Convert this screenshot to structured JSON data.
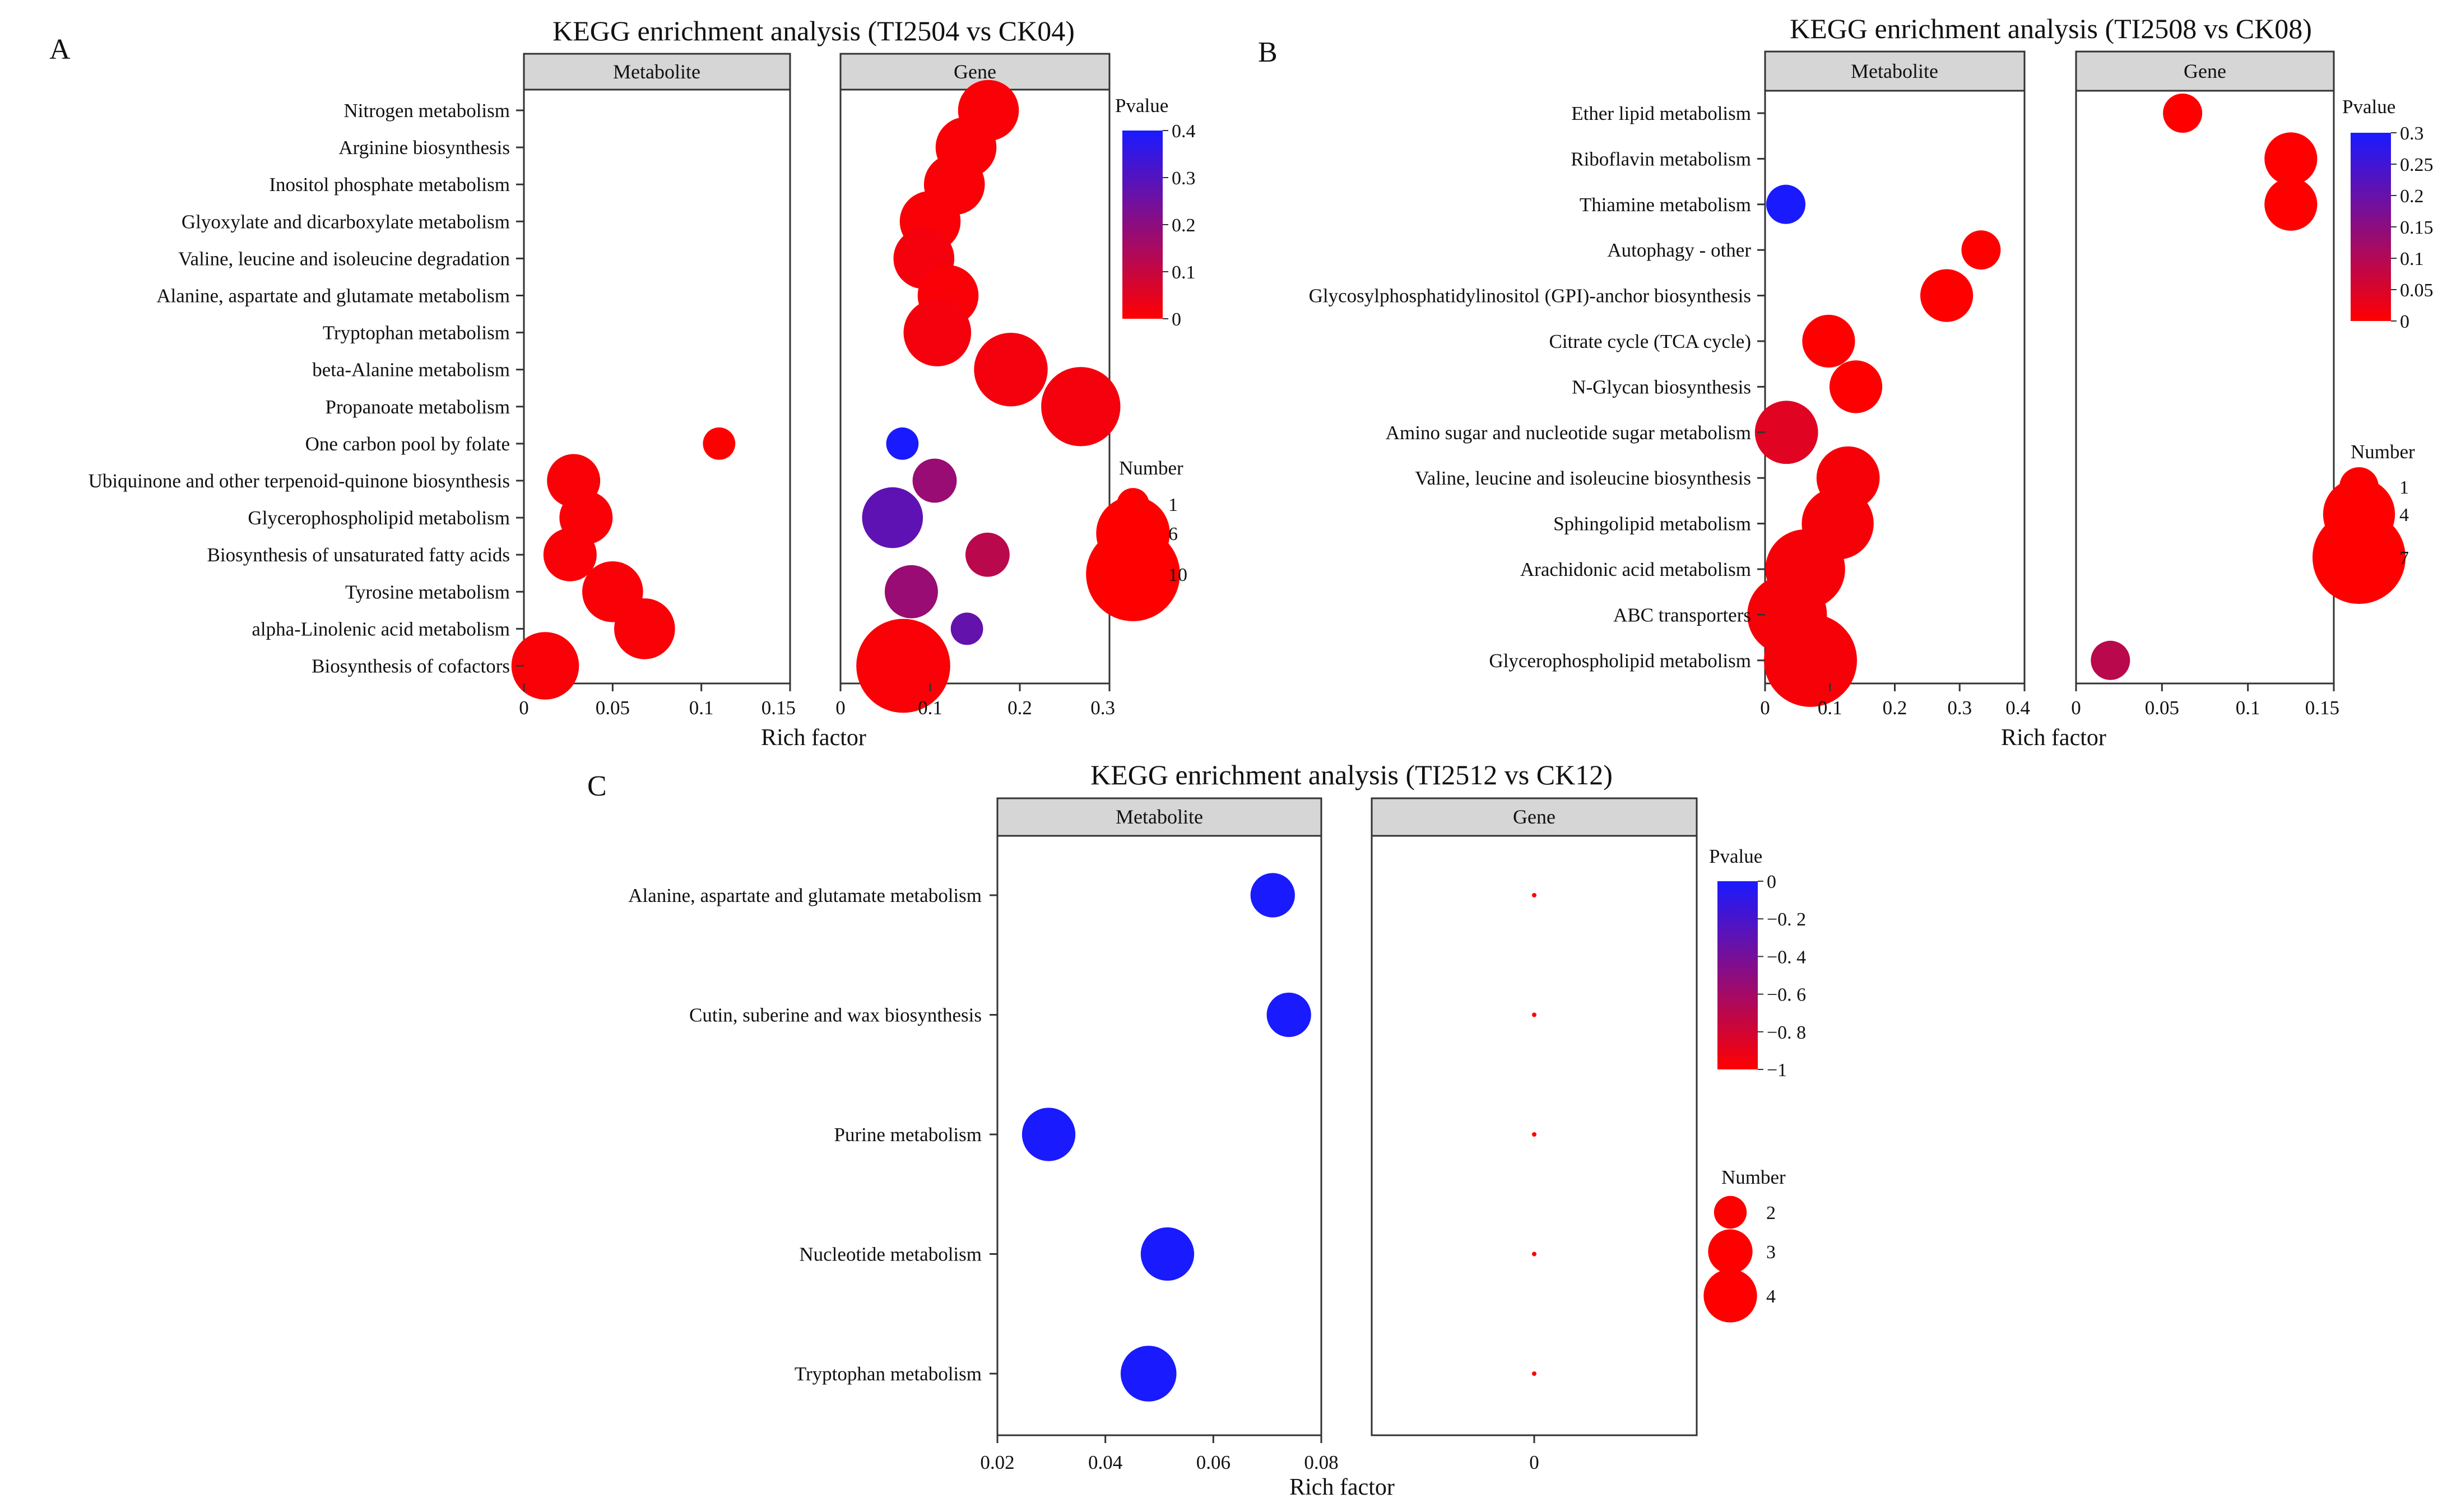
{
  "chart_data": [
    {
      "panel": "A",
      "type": "scatter",
      "title": "KEGG enrichment analysis (TI2504 vs CK04)",
      "xlabel": "Rich factor",
      "facets": [
        {
          "name": "Metabolite",
          "xlim": [
            0,
            0.15
          ],
          "ticks": [
            0,
            0.05,
            0.1,
            0.15
          ],
          "tick_labels": [
            "0",
            "0.05",
            "0.1",
            "0.15"
          ]
        },
        {
          "name": "Gene",
          "xlim": [
            0,
            0.3
          ],
          "ticks": [
            0,
            0.1,
            0.2,
            0.3
          ],
          "tick_labels": [
            "0",
            "0.1",
            "0.2",
            "0.3"
          ]
        }
      ],
      "categories": [
        "Nitrogen metabolism",
        "Arginine biosynthesis",
        "Inositol phosphate metabolism",
        "Glyoxylate and dicarboxylate metabolism",
        "Valine, leucine and isoleucine degradation",
        "Alanine, aspartate and glutamate metabolism",
        "Tryptophan metabolism",
        "beta-Alanine metabolism",
        "Propanoate metabolism",
        "One carbon pool by folate",
        "Ubiquinone and other terpenoid-quinone biosynthesis",
        "Glycerophospholipid metabolism",
        "Biosynthesis of unsaturated fatty acids",
        "Tyrosine metabolism",
        "alpha-Linolenic acid metabolism",
        "Biosynthesis of cofactors"
      ],
      "points": [
        {
          "facet": "Metabolite",
          "category": "One carbon pool by folate",
          "x": 0.11,
          "number": 1,
          "pvalue": 0.0
        },
        {
          "facet": "Metabolite",
          "category": "Ubiquinone and other terpenoid-quinone biosynthesis",
          "x": 0.028,
          "number": 3,
          "pvalue": 0.01
        },
        {
          "facet": "Metabolite",
          "category": "Glycerophospholipid metabolism",
          "x": 0.035,
          "number": 3,
          "pvalue": 0.01
        },
        {
          "facet": "Metabolite",
          "category": "Biosynthesis of unsaturated fatty acids",
          "x": 0.026,
          "number": 3,
          "pvalue": 0.01
        },
        {
          "facet": "Metabolite",
          "category": "Tyrosine metabolism",
          "x": 0.05,
          "number": 4,
          "pvalue": 0.01
        },
        {
          "facet": "Metabolite",
          "category": "alpha-Linolenic acid metabolism",
          "x": 0.068,
          "number": 4,
          "pvalue": 0.01
        },
        {
          "facet": "Metabolite",
          "category": "Biosynthesis of cofactors",
          "x": 0.012,
          "number": 5,
          "pvalue": 0.01
        },
        {
          "facet": "Gene",
          "category": "Nitrogen metabolism",
          "x": 0.165,
          "number": 4,
          "pvalue": 0.01
        },
        {
          "facet": "Gene",
          "category": "Arginine biosynthesis",
          "x": 0.14,
          "number": 4,
          "pvalue": 0.01
        },
        {
          "facet": "Gene",
          "category": "Inositol phosphate metabolism",
          "x": 0.127,
          "number": 4,
          "pvalue": 0.01
        },
        {
          "facet": "Gene",
          "category": "Glyoxylate and dicarboxylate metabolism",
          "x": 0.1,
          "number": 4,
          "pvalue": 0.01
        },
        {
          "facet": "Gene",
          "category": "Valine, leucine and isoleucine degradation",
          "x": 0.093,
          "number": 4,
          "pvalue": 0.02
        },
        {
          "facet": "Gene",
          "category": "Alanine, aspartate and glutamate metabolism",
          "x": 0.12,
          "number": 4,
          "pvalue": 0.01
        },
        {
          "facet": "Gene",
          "category": "Tryptophan metabolism",
          "x": 0.108,
          "number": 5,
          "pvalue": 0.02
        },
        {
          "facet": "Gene",
          "category": "beta-Alanine metabolism",
          "x": 0.19,
          "number": 6,
          "pvalue": 0.02
        },
        {
          "facet": "Gene",
          "category": "Propanoate metabolism",
          "x": 0.268,
          "number": 7,
          "pvalue": 0.02
        },
        {
          "facet": "Gene",
          "category": "One carbon pool by folate",
          "x": 0.069,
          "number": 1,
          "pvalue": 0.4
        },
        {
          "facet": "Gene",
          "category": "Ubiquinone and other terpenoid-quinone biosynthesis",
          "x": 0.105,
          "number": 2,
          "pvalue": 0.18
        },
        {
          "facet": "Gene",
          "category": "Glycerophospholipid metabolism",
          "x": 0.058,
          "number": 4,
          "pvalue": 0.28
        },
        {
          "facet": "Gene",
          "category": "Biosynthesis of unsaturated fatty acids",
          "x": 0.164,
          "number": 2,
          "pvalue": 0.12
        },
        {
          "facet": "Gene",
          "category": "Tyrosine metabolism",
          "x": 0.079,
          "number": 3,
          "pvalue": 0.18
        },
        {
          "facet": "Gene",
          "category": "alpha-Linolenic acid metabolism",
          "x": 0.141,
          "number": 1,
          "pvalue": 0.27
        },
        {
          "facet": "Gene",
          "category": "Biosynthesis of cofactors",
          "x": 0.07,
          "number": 10,
          "pvalue": 0.01
        }
      ],
      "color_legend": {
        "title": "Pvalue",
        "range": [
          0,
          0.4
        ],
        "ticks": [
          0,
          0.1,
          0.2,
          0.3,
          0.4
        ],
        "tick_labels": [
          "0",
          "0.1",
          "0.2",
          "0.3",
          "0.4"
        ],
        "low_color": "#ff0000",
        "high_color": "#1a1aff"
      },
      "size_legend": {
        "title": "Number",
        "values": [
          1,
          6,
          10
        ],
        "labels": [
          "1",
          "6",
          "10"
        ]
      }
    },
    {
      "panel": "B",
      "type": "scatter",
      "title": "KEGG enrichment analysis (TI2508 vs CK08)",
      "xlabel": "Rich factor",
      "facets": [
        {
          "name": "Metabolite",
          "xlim": [
            0,
            0.4
          ],
          "ticks": [
            0,
            0.1,
            0.2,
            0.3,
            0.4
          ],
          "tick_labels": [
            "0",
            "0.1",
            "0.2",
            "0.3",
            "0.4"
          ]
        },
        {
          "name": "Gene",
          "xlim": [
            0,
            0.15
          ],
          "ticks": [
            0,
            0.05,
            0.1,
            0.15
          ],
          "tick_labels": [
            "0",
            "0.05",
            "0.1",
            "0.15"
          ]
        }
      ],
      "categories": [
        "Ether lipid metabolism",
        "Riboflavin metabolism",
        "Thiamine metabolism",
        "Autophagy - other",
        "Glycosylphosphatidylinositol (GPI)-anchor biosynthesis",
        "Citrate cycle (TCA cycle)",
        "N-Glycan biosynthesis",
        "Amino sugar and nucleotide sugar metabolism",
        "Valine, leucine and isoleucine biosynthesis",
        "Sphingolipid metabolism",
        "Arachidonic acid metabolism",
        "ABC transporters",
        "Glycerophospholipid metabolism"
      ],
      "points": [
        {
          "facet": "Metabolite",
          "category": "Thiamine metabolism",
          "x": 0.032,
          "number": 1,
          "pvalue": 0.3
        },
        {
          "facet": "Metabolite",
          "category": "Autophagy - other",
          "x": 0.333,
          "number": 1,
          "pvalue": 0.0
        },
        {
          "facet": "Metabolite",
          "category": "Glycosylphosphatidylinositol (GPI)-anchor biosynthesis",
          "x": 0.28,
          "number": 2,
          "pvalue": 0.0
        },
        {
          "facet": "Metabolite",
          "category": "Citrate cycle (TCA cycle)",
          "x": 0.098,
          "number": 2,
          "pvalue": 0.0
        },
        {
          "facet": "Metabolite",
          "category": "N-Glycan biosynthesis",
          "x": 0.14,
          "number": 2,
          "pvalue": 0.0
        },
        {
          "facet": "Metabolite",
          "category": "Amino sugar and nucleotide sugar metabolism",
          "x": 0.033,
          "number": 3,
          "pvalue": 0.04
        },
        {
          "facet": "Metabolite",
          "category": "Valine, leucine and isoleucine biosynthesis",
          "x": 0.128,
          "number": 3,
          "pvalue": 0.01
        },
        {
          "facet": "Metabolite",
          "category": "Sphingolipid metabolism",
          "x": 0.112,
          "number": 4,
          "pvalue": 0.01
        },
        {
          "facet": "Metabolite",
          "category": "Arachidonic acid metabolism",
          "x": 0.062,
          "number": 5,
          "pvalue": 0.01
        },
        {
          "facet": "Metabolite",
          "category": "ABC transporters",
          "x": 0.034,
          "number": 5,
          "pvalue": 0.01
        },
        {
          "facet": "Metabolite",
          "category": "Glycerophospholipid metabolism",
          "x": 0.07,
          "number": 7,
          "pvalue": 0.01
        },
        {
          "facet": "Gene",
          "category": "Ether lipid metabolism",
          "x": 0.062,
          "number": 1,
          "pvalue": 0.0
        },
        {
          "facet": "Gene",
          "category": "Riboflavin metabolism",
          "x": 0.125,
          "number": 2,
          "pvalue": 0.0
        },
        {
          "facet": "Gene",
          "category": "Thiamine metabolism",
          "x": 0.125,
          "number": 2,
          "pvalue": 0.0
        },
        {
          "facet": "Gene",
          "category": "Glycerophospholipid metabolism",
          "x": 0.02,
          "number": 1,
          "pvalue": 0.09
        }
      ],
      "color_legend": {
        "title": "Pvalue",
        "range": [
          0,
          0.3
        ],
        "ticks": [
          0,
          0.05,
          0.1,
          0.15,
          0.2,
          0.25,
          0.3
        ],
        "tick_labels": [
          "0",
          "0.05",
          "0.1",
          "0.15",
          "0.2",
          "0.25",
          "0.3"
        ],
        "low_color": "#ff0000",
        "high_color": "#1a1aff"
      },
      "size_legend": {
        "title": "Number",
        "values": [
          1,
          4,
          7
        ],
        "labels": [
          "1",
          "4",
          "7"
        ]
      }
    },
    {
      "panel": "C",
      "type": "scatter",
      "title": "KEGG enrichment analysis (TI2512 vs CK12)",
      "xlabel": "Rich factor",
      "facets": [
        {
          "name": "Metabolite",
          "xlim": [
            0.02,
            0.08
          ],
          "ticks": [
            0.02,
            0.04,
            0.06,
            0.08
          ],
          "tick_labels": [
            "0.02",
            "0.04",
            "0.06",
            "0.08"
          ]
        },
        {
          "name": "Gene",
          "xlim": [
            -1,
            1
          ],
          "ticks": [
            0
          ],
          "tick_labels": [
            "0"
          ]
        }
      ],
      "categories": [
        "Alanine, aspartate and glutamate metabolism",
        "Cutin, suberine and wax biosynthesis",
        "Purine metabolism",
        "Nucleotide metabolism",
        "Tryptophan metabolism"
      ],
      "points": [
        {
          "facet": "Metabolite",
          "category": "Alanine, aspartate and glutamate metabolism",
          "x": 0.071,
          "number": 3,
          "pvalue": 0
        },
        {
          "facet": "Metabolite",
          "category": "Cutin, suberine and wax biosynthesis",
          "x": 0.074,
          "number": 3,
          "pvalue": 0
        },
        {
          "facet": "Metabolite",
          "category": "Purine metabolism",
          "x": 0.0295,
          "number": 4,
          "pvalue": 0
        },
        {
          "facet": "Metabolite",
          "category": "Nucleotide metabolism",
          "x": 0.0515,
          "number": 4,
          "pvalue": 0
        },
        {
          "facet": "Metabolite",
          "category": "Tryptophan metabolism",
          "x": 0.048,
          "number": 4.3,
          "pvalue": 0
        },
        {
          "facet": "Gene",
          "category": "Alanine, aspartate and glutamate metabolism",
          "x": 0,
          "number": 1,
          "pvalue": -1
        },
        {
          "facet": "Gene",
          "category": "Cutin, suberine and wax biosynthesis",
          "x": 0,
          "number": 1,
          "pvalue": -1
        },
        {
          "facet": "Gene",
          "category": "Purine metabolism",
          "x": 0,
          "number": 1,
          "pvalue": -1
        },
        {
          "facet": "Gene",
          "category": "Nucleotide metabolism",
          "x": 0,
          "number": 1,
          "pvalue": -1
        },
        {
          "facet": "Gene",
          "category": "Tryptophan metabolism",
          "x": 0,
          "number": 1,
          "pvalue": -1
        }
      ],
      "color_legend": {
        "title": "Pvalue",
        "range": [
          -1,
          0
        ],
        "ticks": [
          0,
          -0.2,
          -0.4,
          -0.6,
          -0.8,
          -1
        ],
        "tick_labels": [
          "0",
          "−0. 2",
          "−0. 4",
          "−0. 6",
          "−0. 8",
          "−1"
        ],
        "low_color": "#ff0000",
        "high_color": "#1a1aff"
      },
      "size_legend": {
        "title": "Number",
        "values": [
          2,
          3,
          4
        ],
        "labels": [
          "2",
          "3",
          "4"
        ]
      }
    }
  ]
}
